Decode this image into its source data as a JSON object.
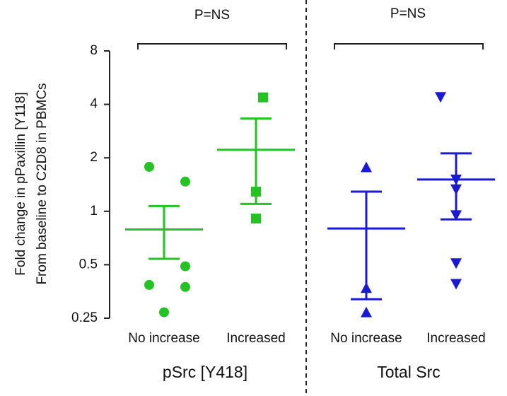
{
  "chart_data": {
    "type": "dot",
    "y_label_lines": [
      "Fold change in pPaxillin [Y118]",
      "From baseline to C2D8 in PBMCs"
    ],
    "log_base": 2,
    "ylim": [
      0.25,
      8
    ],
    "yticks": [
      0.25,
      0.5,
      1,
      2,
      4,
      8
    ],
    "groups": [
      {
        "name": "pSrc [Y418]",
        "annotation": "P=NS"
      },
      {
        "name": "Total Src",
        "annotation": "P=NS"
      }
    ],
    "series": [
      {
        "name": "No increase",
        "group": 0,
        "color": "#22c322",
        "marker": "circle",
        "values": [
          1.78,
          1.47,
          0.49,
          0.385,
          0.375,
          0.27
        ],
        "mean": 0.79,
        "sem_upper": 1.07,
        "sem_lower": 0.54
      },
      {
        "name": "Increased",
        "group": 0,
        "color": "#22c322",
        "marker": "square",
        "values": [
          4.38,
          1.29,
          0.91
        ],
        "mean": 2.22,
        "sem_upper": 3.33,
        "sem_lower": 1.1
      },
      {
        "name": "No increase",
        "group": 1,
        "color": "#1a1ad6",
        "marker": "triangle-up",
        "values": [
          1.77,
          0.37,
          0.27
        ],
        "mean": 0.8,
        "sem_upper": 1.29,
        "sem_lower": 0.32
      },
      {
        "name": "Increased",
        "group": 1,
        "color": "#1a1ad6",
        "marker": "triangle-down",
        "values": [
          4.4,
          1.51,
          1.33,
          0.95,
          0.51,
          0.39
        ],
        "mean": 1.51,
        "sem_upper": 2.12,
        "sem_lower": 0.9
      }
    ]
  }
}
